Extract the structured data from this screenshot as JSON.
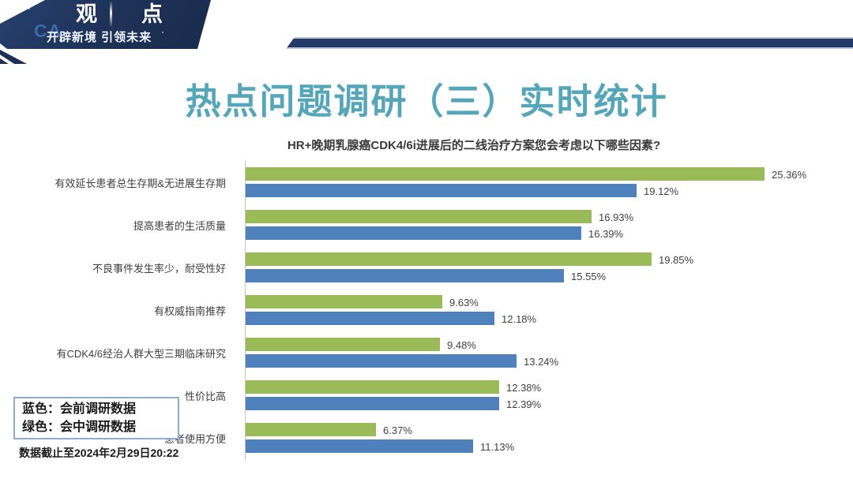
{
  "header": {
    "logo_chars": [
      "观",
      "点"
    ],
    "logo_tagline": "开辟新境 引领未来",
    "logo_watermark": "CA",
    "banner_color": "#1d3055",
    "stripe_color": "#233a69"
  },
  "slide": {
    "title": "热点问题调研（三）实时统计",
    "title_color": "#55a6b8",
    "subtitle": "HR+晚期乳腺癌CDK4/6i进展后的二线治疗方案您会考虑以下哪些因素?",
    "footer_note": "数据截止至2024年2月29日20:22"
  },
  "legend": {
    "lines": [
      "蓝色：会前调研数据",
      "绿色：会中调研数据"
    ],
    "border_color": "#8faadc"
  },
  "chart_data": {
    "type": "bar",
    "orientation": "horizontal",
    "title": "HR+晚期乳腺癌CDK4/6i进展后的二线治疗方案您会考虑以下哪些因素?",
    "categories": [
      "有效延长患者总生存期&无进展生存期",
      "提高患者的生活质量",
      "不良事件发生率少，耐受性好",
      "有权威指南推荐",
      "有CDK4/6经治人群大型三期临床研究",
      "性价比高",
      "患者使用方便"
    ],
    "series": [
      {
        "name": "会中调研数据",
        "legend_color_word": "绿色",
        "color": "#9bbb59",
        "values": [
          25.36,
          16.93,
          19.85,
          9.63,
          9.48,
          12.38,
          6.37
        ]
      },
      {
        "name": "会前调研数据",
        "legend_color_word": "蓝色",
        "color": "#4f81bd",
        "values": [
          19.12,
          16.39,
          15.55,
          12.18,
          13.24,
          12.39,
          11.13
        ]
      }
    ],
    "value_suffix": "%",
    "value_labels": true,
    "xlim": [
      0,
      27
    ],
    "grid": false,
    "legend_position": "bottom-left"
  }
}
